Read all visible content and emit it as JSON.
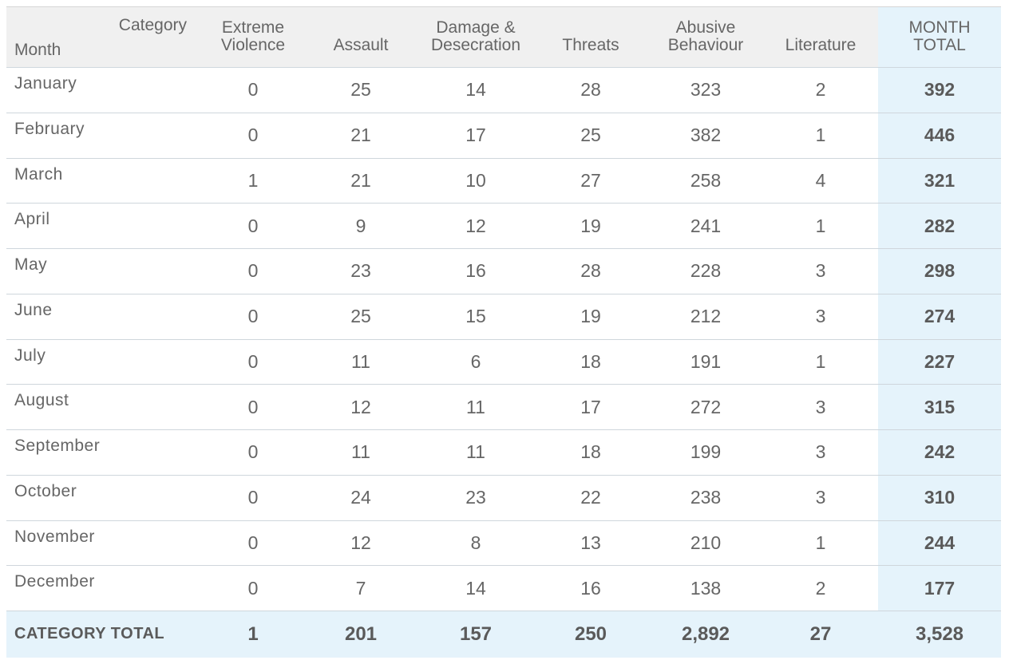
{
  "chart_data": {
    "type": "table",
    "corner_labels": {
      "category": "Category",
      "month": "Month"
    },
    "columns": [
      {
        "label": "Extreme Violence"
      },
      {
        "label": "Assault"
      },
      {
        "label": "Damage & Desecration"
      },
      {
        "label": "Threats"
      },
      {
        "label": "Abusive Behaviour"
      },
      {
        "label": "Literature"
      },
      {
        "label": "MONTH TOTAL"
      }
    ],
    "rows": [
      {
        "month": "January",
        "values": [
          "0",
          "25",
          "14",
          "28",
          "323",
          "2",
          "392"
        ]
      },
      {
        "month": "February",
        "values": [
          "0",
          "21",
          "17",
          "25",
          "382",
          "1",
          "446"
        ]
      },
      {
        "month": "March",
        "values": [
          "1",
          "21",
          "10",
          "27",
          "258",
          "4",
          "321"
        ]
      },
      {
        "month": "April",
        "values": [
          "0",
          "9",
          "12",
          "19",
          "241",
          "1",
          "282"
        ]
      },
      {
        "month": "May",
        "values": [
          "0",
          "23",
          "16",
          "28",
          "228",
          "3",
          "298"
        ]
      },
      {
        "month": "June",
        "values": [
          "0",
          "25",
          "15",
          "19",
          "212",
          "3",
          "274"
        ]
      },
      {
        "month": "July",
        "values": [
          "0",
          "11",
          "6",
          "18",
          "191",
          "1",
          "227"
        ]
      },
      {
        "month": "August",
        "values": [
          "0",
          "12",
          "11",
          "17",
          "272",
          "3",
          "315"
        ]
      },
      {
        "month": "September",
        "values": [
          "0",
          "11",
          "11",
          "18",
          "199",
          "3",
          "242"
        ]
      },
      {
        "month": "October",
        "values": [
          "0",
          "24",
          "23",
          "22",
          "238",
          "3",
          "310"
        ]
      },
      {
        "month": "November",
        "values": [
          "0",
          "12",
          "8",
          "13",
          "210",
          "1",
          "244"
        ]
      },
      {
        "month": "December",
        "values": [
          "0",
          "7",
          "14",
          "16",
          "138",
          "2",
          "177"
        ]
      }
    ],
    "totals": {
      "label": "CATEGORY TOTAL",
      "values": [
        "1",
        "201",
        "157",
        "250",
        "2,892",
        "27",
        "3,528"
      ]
    },
    "colors": {
      "header_bg": "#f0f0f0",
      "total_bg": "#e5f3fb",
      "text": "#666666",
      "rule": "#cfd6dc"
    }
  }
}
